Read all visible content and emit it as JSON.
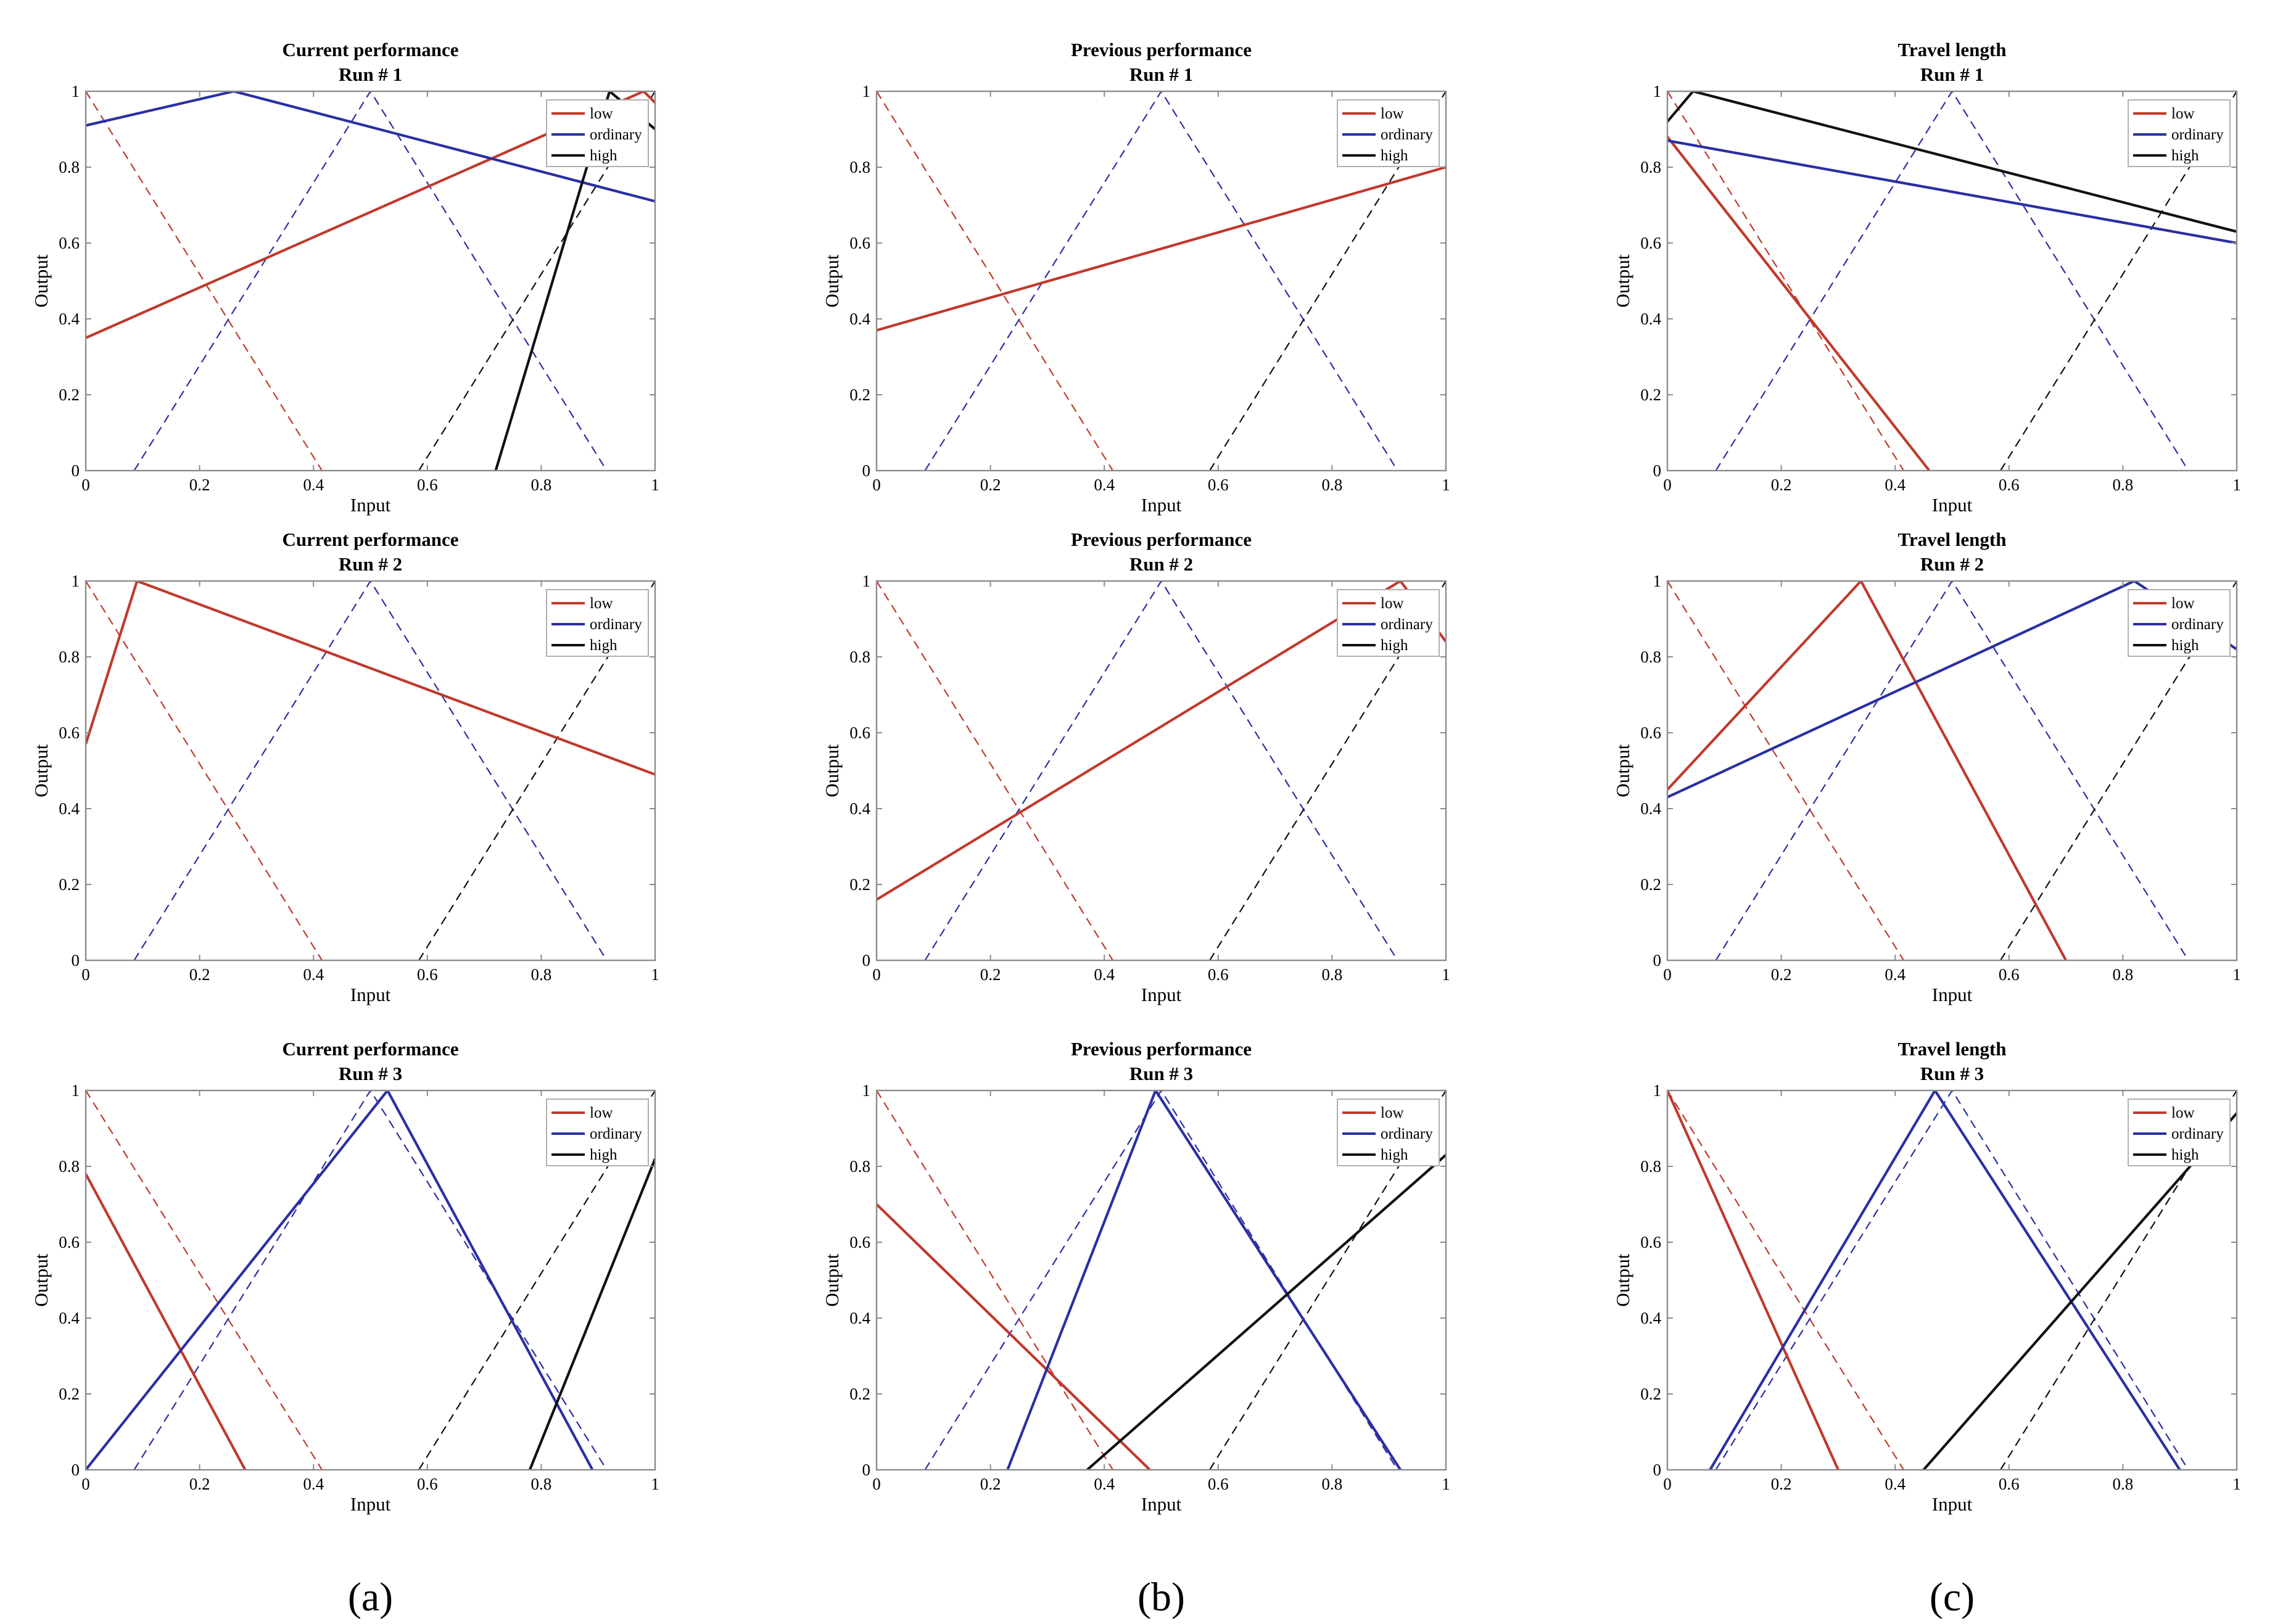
{
  "figure": {
    "panel_labels": [
      "(a)",
      "(b)",
      "(c)"
    ],
    "colors": {
      "low": "#c0392b",
      "ordinary": "#2a2fa3",
      "high": "#111111",
      "frame": "#8c8c8c"
    }
  },
  "chart_data": [
    {
      "type": "line",
      "row": 0,
      "col": 0,
      "title": [
        "Current performance",
        "Run # 1"
      ],
      "xlabel": "Input",
      "ylabel": "Output",
      "xlim": [
        0,
        1
      ],
      "ylim": [
        0,
        1
      ],
      "xticks": [
        "0",
        "0.2",
        "0.4",
        "0.6",
        "0.8",
        "1"
      ],
      "yticks": [
        "0",
        "0.2",
        "0.4",
        "0.6",
        "0.8",
        "1"
      ],
      "legend": [
        "low",
        "ordinary",
        "high"
      ],
      "legend_position": "top-right",
      "reference": [
        {
          "name": "low",
          "x": [
            0,
            0.415
          ],
          "y": [
            1,
            0
          ]
        },
        {
          "name": "ordinary",
          "x": [
            0.085,
            0.5,
            0.915
          ],
          "y": [
            0,
            1,
            0
          ]
        },
        {
          "name": "high",
          "x": [
            0.585,
            1
          ],
          "y": [
            0,
            1
          ]
        }
      ],
      "series": [
        {
          "name": "low",
          "x": [
            0,
            0.98,
            1
          ],
          "y": [
            0.35,
            1,
            0.97
          ]
        },
        {
          "name": "ordinary",
          "x": [
            0,
            0.26,
            1
          ],
          "y": [
            0.91,
            1,
            0.71
          ]
        },
        {
          "name": "high",
          "x": [
            0.72,
            0.92,
            1
          ],
          "y": [
            0,
            1,
            0.9
          ]
        }
      ]
    },
    {
      "type": "line",
      "row": 0,
      "col": 1,
      "title": [
        "Previous performance",
        "Run # 1"
      ],
      "xlabel": "Input",
      "ylabel": "Output",
      "xlim": [
        0,
        1
      ],
      "ylim": [
        0,
        1
      ],
      "xticks": [
        "0",
        "0.2",
        "0.4",
        "0.6",
        "0.8",
        "1"
      ],
      "yticks": [
        "0",
        "0.2",
        "0.4",
        "0.6",
        "0.8",
        "1"
      ],
      "legend": [
        "low",
        "ordinary",
        "high"
      ],
      "legend_position": "top-right",
      "reference": [
        {
          "name": "low",
          "x": [
            0,
            0.415
          ],
          "y": [
            1,
            0
          ]
        },
        {
          "name": "ordinary",
          "x": [
            0.085,
            0.5,
            0.915
          ],
          "y": [
            0,
            1,
            0
          ]
        },
        {
          "name": "high",
          "x": [
            0.585,
            1
          ],
          "y": [
            0,
            1
          ]
        }
      ],
      "series": [
        {
          "name": "low",
          "x": [
            0,
            1
          ],
          "y": [
            0.37,
            0.8
          ]
        }
      ]
    },
    {
      "type": "line",
      "row": 0,
      "col": 2,
      "title": [
        "Travel length",
        "Run # 1"
      ],
      "xlabel": "Input",
      "ylabel": "Output",
      "xlim": [
        0,
        1
      ],
      "ylim": [
        0,
        1
      ],
      "xticks": [
        "0",
        "0.2",
        "0.4",
        "0.6",
        "0.8",
        "1"
      ],
      "yticks": [
        "0",
        "0.2",
        "0.4",
        "0.6",
        "0.8",
        "1"
      ],
      "legend": [
        "low",
        "ordinary",
        "high"
      ],
      "legend_position": "top-right",
      "reference": [
        {
          "name": "low",
          "x": [
            0,
            0.415
          ],
          "y": [
            1,
            0
          ]
        },
        {
          "name": "ordinary",
          "x": [
            0.085,
            0.5,
            0.915
          ],
          "y": [
            0,
            1,
            0
          ]
        },
        {
          "name": "high",
          "x": [
            0.585,
            1
          ],
          "y": [
            0,
            1
          ]
        }
      ],
      "series": [
        {
          "name": "low",
          "x": [
            0,
            0.46
          ],
          "y": [
            0.88,
            0
          ]
        },
        {
          "name": "ordinary",
          "x": [
            0,
            1
          ],
          "y": [
            0.87,
            0.6
          ]
        },
        {
          "name": "high",
          "x": [
            0,
            0.045,
            1
          ],
          "y": [
            0.92,
            1,
            0.63
          ]
        }
      ]
    },
    {
      "type": "line",
      "row": 1,
      "col": 0,
      "title": [
        "Current performance",
        "Run # 2"
      ],
      "xlabel": "Input",
      "ylabel": "Output",
      "xlim": [
        0,
        1
      ],
      "ylim": [
        0,
        1
      ],
      "xticks": [
        "0",
        "0.2",
        "0.4",
        "0.6",
        "0.8",
        "1"
      ],
      "yticks": [
        "0",
        "0.2",
        "0.4",
        "0.6",
        "0.8",
        "1"
      ],
      "legend": [
        "low",
        "ordinary",
        "high"
      ],
      "legend_position": "top-right",
      "reference": [
        {
          "name": "low",
          "x": [
            0,
            0.415
          ],
          "y": [
            1,
            0
          ]
        },
        {
          "name": "ordinary",
          "x": [
            0.085,
            0.5,
            0.915
          ],
          "y": [
            0,
            1,
            0
          ]
        },
        {
          "name": "high",
          "x": [
            0.585,
            1
          ],
          "y": [
            0,
            1
          ]
        }
      ],
      "series": [
        {
          "name": "low",
          "x": [
            0,
            0.09,
            1
          ],
          "y": [
            0.57,
            1,
            0.49
          ]
        }
      ]
    },
    {
      "type": "line",
      "row": 1,
      "col": 1,
      "title": [
        "Previous performance",
        "Run # 2"
      ],
      "xlabel": "Input",
      "ylabel": "Output",
      "xlim": [
        0,
        1
      ],
      "ylim": [
        0,
        1
      ],
      "xticks": [
        "0",
        "0.2",
        "0.4",
        "0.6",
        "0.8",
        "1"
      ],
      "yticks": [
        "0",
        "0.2",
        "0.4",
        "0.6",
        "0.8",
        "1"
      ],
      "legend": [
        "low",
        "ordinary",
        "high"
      ],
      "legend_position": "top-right",
      "reference": [
        {
          "name": "low",
          "x": [
            0,
            0.415
          ],
          "y": [
            1,
            0
          ]
        },
        {
          "name": "ordinary",
          "x": [
            0.085,
            0.5,
            0.915
          ],
          "y": [
            0,
            1,
            0
          ]
        },
        {
          "name": "high",
          "x": [
            0.585,
            1
          ],
          "y": [
            0,
            1
          ]
        }
      ],
      "series": [
        {
          "name": "low",
          "x": [
            0,
            0.92,
            1
          ],
          "y": [
            0.16,
            1,
            0.84
          ]
        }
      ]
    },
    {
      "type": "line",
      "row": 1,
      "col": 2,
      "title": [
        "Travel length",
        "Run # 2"
      ],
      "xlabel": "Input",
      "ylabel": "Output",
      "xlim": [
        0,
        1
      ],
      "ylim": [
        0,
        1
      ],
      "xticks": [
        "0",
        "0.2",
        "0.4",
        "0.6",
        "0.8",
        "1"
      ],
      "yticks": [
        "0",
        "0.2",
        "0.4",
        "0.6",
        "0.8",
        "1"
      ],
      "legend": [
        "low",
        "ordinary",
        "high"
      ],
      "legend_position": "top-right",
      "reference": [
        {
          "name": "low",
          "x": [
            0,
            0.415
          ],
          "y": [
            1,
            0
          ]
        },
        {
          "name": "ordinary",
          "x": [
            0.085,
            0.5,
            0.915
          ],
          "y": [
            0,
            1,
            0
          ]
        },
        {
          "name": "high",
          "x": [
            0.585,
            1
          ],
          "y": [
            0,
            1
          ]
        }
      ],
      "series": [
        {
          "name": "low",
          "x": [
            0,
            0.34,
            0.7
          ],
          "y": [
            0.45,
            1,
            0
          ]
        },
        {
          "name": "ordinary",
          "x": [
            0,
            0.82,
            1
          ],
          "y": [
            0.43,
            1,
            0.82
          ]
        }
      ]
    },
    {
      "type": "line",
      "row": 2,
      "col": 0,
      "title": [
        "Current performance",
        "Run # 3"
      ],
      "xlabel": "Input",
      "ylabel": "Output",
      "xlim": [
        0,
        1
      ],
      "ylim": [
        0,
        1
      ],
      "xticks": [
        "0",
        "0.2",
        "0.4",
        "0.6",
        "0.8",
        "1"
      ],
      "yticks": [
        "0",
        "0.2",
        "0.4",
        "0.6",
        "0.8",
        "1"
      ],
      "legend": [
        "low",
        "ordinary",
        "high"
      ],
      "legend_position": "top-right",
      "reference": [
        {
          "name": "low",
          "x": [
            0,
            0.415
          ],
          "y": [
            1,
            0
          ]
        },
        {
          "name": "ordinary",
          "x": [
            0.085,
            0.5,
            0.915
          ],
          "y": [
            0,
            1,
            0
          ]
        },
        {
          "name": "high",
          "x": [
            0.585,
            1
          ],
          "y": [
            0,
            1
          ]
        }
      ],
      "series": [
        {
          "name": "low",
          "x": [
            0,
            0.28
          ],
          "y": [
            0.78,
            0
          ]
        },
        {
          "name": "ordinary",
          "x": [
            0,
            0.53,
            0.89
          ],
          "y": [
            0,
            1,
            0
          ]
        },
        {
          "name": "high",
          "x": [
            0.78,
            1
          ],
          "y": [
            0,
            0.82
          ]
        }
      ]
    },
    {
      "type": "line",
      "row": 2,
      "col": 1,
      "title": [
        "Previous performance",
        "Run # 3"
      ],
      "xlabel": "Input",
      "ylabel": "Output",
      "xlim": [
        0,
        1
      ],
      "ylim": [
        0,
        1
      ],
      "xticks": [
        "0",
        "0.2",
        "0.4",
        "0.6",
        "0.8",
        "1"
      ],
      "yticks": [
        "0",
        "0.2",
        "0.4",
        "0.6",
        "0.8",
        "1"
      ],
      "legend": [
        "low",
        "ordinary",
        "high"
      ],
      "legend_position": "top-right",
      "reference": [
        {
          "name": "low",
          "x": [
            0,
            0.415
          ],
          "y": [
            1,
            0
          ]
        },
        {
          "name": "ordinary",
          "x": [
            0.085,
            0.5,
            0.915
          ],
          "y": [
            0,
            1,
            0
          ]
        },
        {
          "name": "high",
          "x": [
            0.585,
            1
          ],
          "y": [
            0,
            1
          ]
        }
      ],
      "series": [
        {
          "name": "low",
          "x": [
            0,
            0.48
          ],
          "y": [
            0.7,
            0
          ]
        },
        {
          "name": "ordinary",
          "x": [
            0.23,
            0.49,
            0.92
          ],
          "y": [
            0,
            1,
            0
          ]
        },
        {
          "name": "high",
          "x": [
            0.37,
            1
          ],
          "y": [
            0,
            0.83
          ]
        }
      ]
    },
    {
      "type": "line",
      "row": 2,
      "col": 2,
      "title": [
        "Travel length",
        "Run # 3"
      ],
      "xlabel": "Input",
      "ylabel": "Output",
      "xlim": [
        0,
        1
      ],
      "ylim": [
        0,
        1
      ],
      "xticks": [
        "0",
        "0.2",
        "0.4",
        "0.6",
        "0.8",
        "1"
      ],
      "yticks": [
        "0",
        "0.2",
        "0.4",
        "0.6",
        "0.8",
        "1"
      ],
      "legend": [
        "low",
        "ordinary",
        "high"
      ],
      "legend_position": "top-right",
      "reference": [
        {
          "name": "low",
          "x": [
            0,
            0.415
          ],
          "y": [
            1,
            0
          ]
        },
        {
          "name": "ordinary",
          "x": [
            0.085,
            0.5,
            0.915
          ],
          "y": [
            0,
            1,
            0
          ]
        },
        {
          "name": "high",
          "x": [
            0.585,
            1
          ],
          "y": [
            0,
            1
          ]
        }
      ],
      "series": [
        {
          "name": "low",
          "x": [
            0,
            0.3
          ],
          "y": [
            1,
            0
          ]
        },
        {
          "name": "ordinary",
          "x": [
            0.075,
            0.47,
            0.9
          ],
          "y": [
            0,
            1,
            0
          ]
        },
        {
          "name": "high",
          "x": [
            0.45,
            1
          ],
          "y": [
            0,
            0.94
          ]
        }
      ]
    }
  ]
}
